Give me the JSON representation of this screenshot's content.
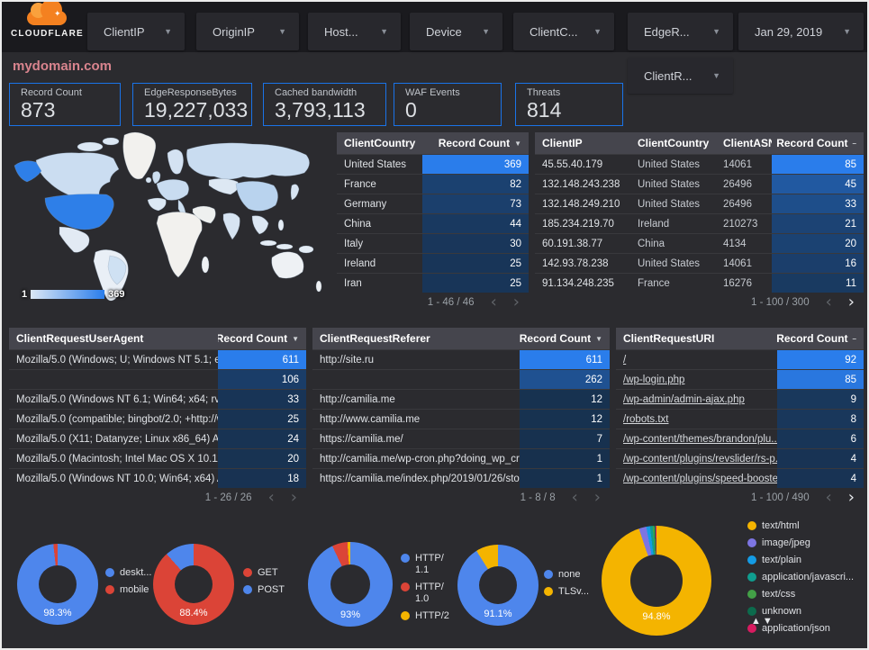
{
  "header": {
    "logo_text": "CLOUDFLARE",
    "filters": [
      {
        "label": "ClientIP"
      },
      {
        "label": "OriginIP"
      },
      {
        "label": "Host..."
      },
      {
        "label": "Device"
      },
      {
        "label": "ClientC..."
      },
      {
        "label": "EdgeR..."
      },
      {
        "label": "Jan 29, 2019"
      }
    ],
    "filter_row2": {
      "label": "ClientR..."
    }
  },
  "title": "mydomain.com",
  "scorecards": [
    {
      "label": "Record Count",
      "value": "873"
    },
    {
      "label": "EdgeResponseBytes",
      "value": "19,227,033"
    },
    {
      "label": "Cached bandwidth",
      "value": "3,793,113"
    },
    {
      "label": "WAF Events",
      "value": "0"
    },
    {
      "label": "Threats",
      "value": "814"
    }
  ],
  "map": {
    "legend_min": "1",
    "legend_max": "369",
    "regions": {
      "greenland": "#f2f1ee",
      "canada": "#cbddf1",
      "alaska": "#2e7fe8",
      "usa": "#2e7fe8",
      "mexico": "#e2eaf4",
      "south-america": "#e9eff6",
      "brazil": "#cfe1f3",
      "uk": "#cddff0",
      "ireland": "#d7e4f2",
      "scandinavia": "#d4e2f2",
      "europe": "#c9dcf0",
      "iberia": "#dce8f4",
      "italy": "#cddff0",
      "africa": "#f2f1ee",
      "madagascar": "#eef1f4",
      "russia": "#c9dcf0",
      "central-asia": "#dde8f3",
      "middle-east": "#eef0ef",
      "india": "#d7e4f2",
      "china": "#b9d3ee",
      "se-asia": "#dce7f3",
      "indonesia": "#e4ecf5",
      "japan": "#d7e4f2",
      "philippines": "#e4ecf5",
      "new-guinea": "#e4ecf5",
      "australia": "#eef1f4",
      "new-zealand": "#eef1f4",
      "arctic-1": "#dce8f4",
      "arctic-2": "#dce8f4"
    },
    "heat_low": [
      23,
      48,
      77
    ],
    "heat_high": [
      42,
      125,
      235
    ]
  },
  "tables": {
    "client_country": {
      "headers": [
        "ClientCountry",
        "Record Count"
      ],
      "sort_icon": "▼",
      "max": 369,
      "rows": [
        [
          "United States",
          369
        ],
        [
          "France",
          82
        ],
        [
          "Germany",
          73
        ],
        [
          "China",
          44
        ],
        [
          "Italy",
          30
        ],
        [
          "Ireland",
          25
        ],
        [
          "Iran",
          25
        ]
      ],
      "pagination": "1 - 46 / 46",
      "next_active": false,
      "links": false
    },
    "client_ip": {
      "headers": [
        "ClientIP",
        "ClientCountry",
        "ClientASN",
        "Record Count"
      ],
      "sort_icon": "–",
      "max": 85,
      "rows": [
        [
          "45.55.40.179",
          "United States",
          "14061",
          85
        ],
        [
          "132.148.243.238",
          "United States",
          "26496",
          45
        ],
        [
          "132.148.249.210",
          "United States",
          "26496",
          33
        ],
        [
          "185.234.219.70",
          "Ireland",
          "210273",
          21
        ],
        [
          "60.191.38.77",
          "China",
          "4134",
          20
        ],
        [
          "142.93.78.238",
          "United States",
          "14061",
          16
        ],
        [
          "91.134.248.235",
          "France",
          "16276",
          11
        ]
      ],
      "pagination": "1 - 100 / 300",
      "next_active": true,
      "links": false
    },
    "user_agent": {
      "headers": [
        "ClientRequestUserAgent",
        "Record Count"
      ],
      "sort_icon": "▼",
      "max": 611,
      "rows": [
        [
          "Mozilla/5.0 (Windows; U; Windows NT 5.1; en-U...",
          611
        ],
        [
          "",
          106
        ],
        [
          "Mozilla/5.0 (Windows NT 6.1; Win64; x64; rv:64...",
          33
        ],
        [
          "Mozilla/5.0 (compatible; bingbot/2.0; +http://w...",
          25
        ],
        [
          "Mozilla/5.0 (X11; Datanyze; Linux x86_64) Appl...",
          24
        ],
        [
          "Mozilla/5.0 (Macintosh; Intel Mac OS X 10.11; r...",
          20
        ],
        [
          "Mozilla/5.0 (Windows NT 10.0; Win64; x64) App...",
          18
        ]
      ],
      "pagination": "1 - 26 / 26",
      "next_active": false,
      "links": false
    },
    "referer": {
      "headers": [
        "ClientRequestReferer",
        "Record Count"
      ],
      "sort_icon": "▼",
      "max": 611,
      "rows": [
        [
          "http://site.ru",
          611
        ],
        [
          "",
          262
        ],
        [
          "http://camilia.me",
          12
        ],
        [
          "http://www.camilia.me",
          12
        ],
        [
          "https://camilia.me/",
          7
        ],
        [
          "http://camilia.me/wp-cron.php?doing_wp_cron...",
          1
        ],
        [
          "https://camilia.me/index.php/2019/01/26/stor...",
          1
        ]
      ],
      "pagination": "1 - 8 / 8",
      "next_active": false,
      "links": false
    },
    "uri": {
      "headers": [
        "ClientRequestURI",
        "Record Count"
      ],
      "sort_icon": "–",
      "max": 92,
      "rows": [
        [
          "/",
          92
        ],
        [
          "/wp-login.php",
          85
        ],
        [
          "/wp-admin/admin-ajax.php",
          9
        ],
        [
          "/robots.txt",
          8
        ],
        [
          "/wp-content/themes/brandon/plu...",
          6
        ],
        [
          "/wp-content/plugins/revslider/rs-p...",
          4
        ],
        [
          "/wp-content/plugins/speed-booste...",
          4
        ]
      ],
      "pagination": "1 - 100 / 490",
      "next_active": true,
      "links": true
    }
  },
  "donuts": [
    {
      "label_pct": "98.3%",
      "slices": [
        {
          "name": "deskt...",
          "value": 98.3,
          "color": "#4e86ec"
        },
        {
          "name": "mobile",
          "value": 1.7,
          "color": "#db4437"
        }
      ]
    },
    {
      "label_pct": "88.4%",
      "slices": [
        {
          "name": "GET",
          "value": 88.4,
          "color": "#db4437"
        },
        {
          "name": "POST",
          "value": 11.6,
          "color": "#4e86ec"
        }
      ]
    },
    {
      "label_pct": "93%",
      "slices": [
        {
          "name": "HTTP/\n1.1",
          "value": 93,
          "color": "#4e86ec"
        },
        {
          "name": "HTTP/\n1.0",
          "value": 5.9,
          "color": "#db4437"
        },
        {
          "name": "HTTP/2",
          "value": 1.1,
          "color": "#f4b400"
        }
      ]
    },
    {
      "label_pct": "91.1%",
      "slices": [
        {
          "name": "none",
          "value": 91.1,
          "color": "#4e86ec"
        },
        {
          "name": "TLSv...",
          "value": 8.9,
          "color": "#f4b400"
        }
      ]
    },
    {
      "label_pct": "94.8%",
      "slices": [
        {
          "name": "text/html",
          "value": 94.8,
          "color": "#f4b400"
        },
        {
          "name": "image/jpeg",
          "value": 2.2,
          "color": "#7d75e3"
        },
        {
          "name": "text/plain",
          "value": 1.1,
          "color": "#149be5"
        },
        {
          "name": "application/javascri...",
          "value": 0.8,
          "color": "#0f9d8f"
        },
        {
          "name": "text/css",
          "value": 0.5,
          "color": "#43a047"
        },
        {
          "name": "unknown",
          "value": 0.35,
          "color": "#0c6b4d"
        },
        {
          "name": "application/json",
          "value": 0.25,
          "color": "#d81b60"
        }
      ],
      "legend_arrows": {
        "up": "▲",
        "down": "▼"
      }
    }
  ]
}
